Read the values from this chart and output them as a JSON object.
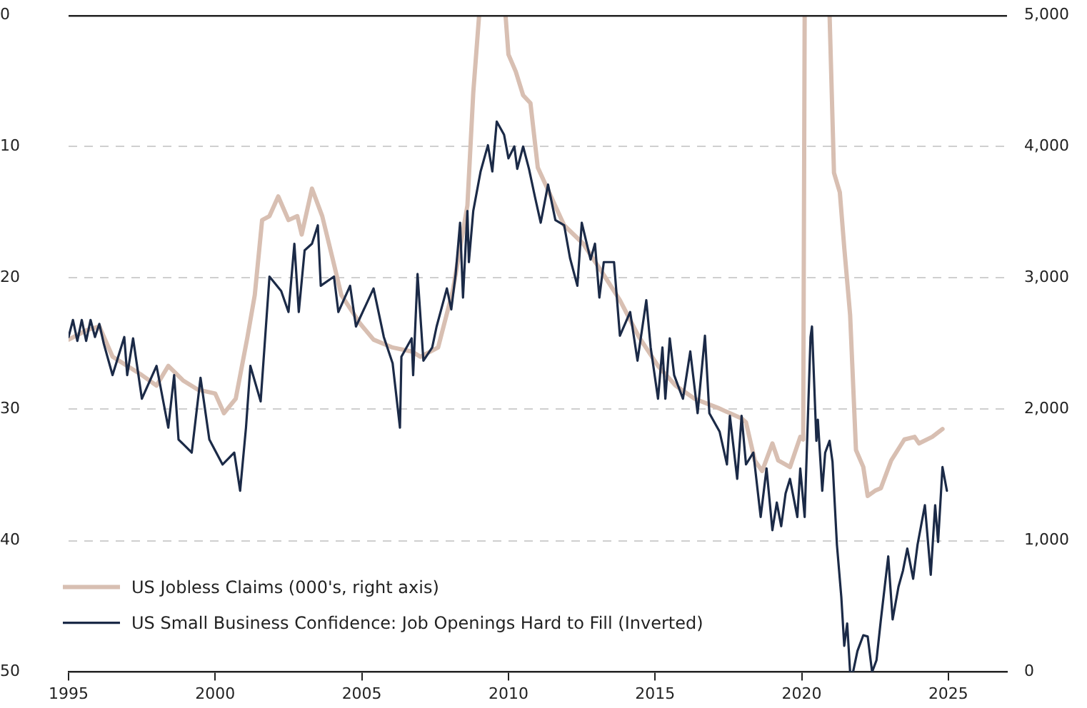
{
  "chart_data": {
    "type": "line",
    "xlim": [
      1995,
      2027
    ],
    "xticks": [
      1995,
      2000,
      2005,
      2010,
      2015,
      2020,
      2025
    ],
    "ylim": [
      50,
      0
    ],
    "yticks": [
      0,
      10,
      20,
      30,
      40,
      50
    ],
    "y2lim": [
      0,
      5000
    ],
    "y2ticks": [
      0,
      {
        "value": 1000,
        "label": "1,000"
      },
      {
        "value": 2000,
        "label": "2,000"
      },
      {
        "value": 3000,
        "label": "3,000"
      },
      {
        "value": 4000,
        "label": "4,000"
      },
      {
        "value": 5000,
        "label": "5,000"
      }
    ],
    "grid": "y",
    "legend": "bottom left",
    "marker": "none",
    "line_style": "solid",
    "series": [
      {
        "name": "US Jobless Claims (000's, right axis)",
        "color": "#d8bfb2",
        "axis": "y2",
        "x": [
          1995.0,
          1995.6,
          1996.05,
          1996.5,
          1997.5,
          1998.0,
          1998.4,
          1998.9,
          1999.4,
          2000.0,
          2000.3,
          2000.7,
          2001.1,
          2001.35,
          2001.6,
          2001.85,
          2002.15,
          2002.5,
          2002.8,
          2002.95,
          2003.3,
          2003.65,
          2004.0,
          2004.3,
          2004.95,
          2005.4,
          2006.05,
          2006.7,
          2007.0,
          2007.6,
          2008.1,
          2008.6,
          2008.8,
          2009.0,
          2009.5,
          2009.9,
          2010.0,
          2010.25,
          2010.5,
          2010.75,
          2011.0,
          2011.45,
          2011.9,
          2012.55,
          2013.2,
          2013.8,
          2014.45,
          2015.1,
          2015.7,
          2016.35,
          2017.15,
          2017.95,
          2018.1,
          2018.4,
          2018.65,
          2019.0,
          2019.2,
          2019.6,
          2019.95,
          2020.05,
          2020.1,
          2020.5,
          2020.95,
          2021.1,
          2021.3,
          2021.45,
          2021.65,
          2021.85,
          2022.1,
          2022.25,
          2022.5,
          2022.7,
          2023.05,
          2023.5,
          2023.85,
          2024.0,
          2024.45,
          2024.8
        ],
        "values": [
          2530,
          2600,
          2630,
          2400,
          2260,
          2180,
          2330,
          2220,
          2150,
          2120,
          1970,
          2080,
          2550,
          2870,
          3440,
          3470,
          3620,
          3440,
          3470,
          3330,
          3680,
          3470,
          3150,
          2870,
          2650,
          2530,
          2470,
          2440,
          2400,
          2470,
          2900,
          3550,
          4410,
          5000,
          null,
          5000,
          4700,
          4570,
          4390,
          4330,
          3840,
          3620,
          3400,
          3260,
          3040,
          2830,
          2550,
          2330,
          2180,
          2080,
          2010,
          1930,
          1900,
          1610,
          1530,
          1740,
          1610,
          1560,
          1790,
          1770,
          5000,
          null,
          5000,
          3800,
          3650,
          3230,
          2720,
          1690,
          1560,
          1340,
          1380,
          1400,
          1610,
          1770,
          1790,
          1740,
          1790,
          1850
        ]
      },
      {
        "name": "US Small Business Confidence: Job Openings Hard to Fill (Inverted)",
        "color": "#1b2a47",
        "x": [
          1995.0,
          1995.15,
          1995.3,
          1995.45,
          1995.6,
          1995.75,
          1995.9,
          1996.05,
          1996.2,
          1996.5,
          1996.9,
          1997.0,
          1997.2,
          1997.5,
          1998.0,
          1998.4,
          1998.6,
          1998.75,
          1999.2,
          1999.5,
          1999.8,
          2000.25,
          2000.65,
          2000.85,
          2001.05,
          2001.2,
          2001.55,
          2001.85,
          2002.25,
          2002.5,
          2002.7,
          2002.85,
          2003.05,
          2003.3,
          2003.5,
          2003.6,
          2004.05,
          2004.2,
          2004.6,
          2004.8,
          2005.4,
          2005.75,
          2006.05,
          2006.3,
          2006.35,
          2006.7,
          2006.75,
          2006.9,
          2007.1,
          2007.4,
          2007.55,
          2007.9,
          2008.05,
          2008.2,
          2008.35,
          2008.45,
          2008.6,
          2008.65,
          2008.8,
          2009.05,
          2009.3,
          2009.45,
          2009.6,
          2009.85,
          2010.0,
          2010.2,
          2010.3,
          2010.5,
          2010.7,
          2010.9,
          2011.1,
          2011.35,
          2011.6,
          2011.9,
          2012.1,
          2012.35,
          2012.5,
          2012.8,
          2012.95,
          2013.1,
          2013.25,
          2013.6,
          2013.8,
          2014.15,
          2014.4,
          2014.7,
          2014.85,
          2015.1,
          2015.25,
          2015.35,
          2015.5,
          2015.65,
          2015.95,
          2016.2,
          2016.45,
          2016.7,
          2016.85,
          2017.2,
          2017.45,
          2017.55,
          2017.8,
          2017.95,
          2018.1,
          2018.35,
          2018.6,
          2018.8,
          2019.0,
          2019.15,
          2019.3,
          2019.45,
          2019.6,
          2019.85,
          2019.95,
          2020.1,
          2020.3,
          2020.35,
          2020.5,
          2020.55,
          2020.7,
          2020.8,
          2020.95,
          2021.05,
          2021.2,
          2021.35,
          2021.45,
          2021.55,
          2021.65,
          2021.75,
          2021.9,
          2022.1,
          2022.25,
          2022.4,
          2022.55,
          2022.7,
          2022.95,
          2023.1,
          2023.3,
          2023.45,
          2023.6,
          2023.8,
          2023.95,
          2024.2,
          2024.4,
          2024.55,
          2024.65,
          2024.8,
          2024.95
        ],
        "values": [
          24.5,
          23.2,
          24.8,
          23.2,
          24.8,
          23.2,
          24.5,
          23.5,
          25.0,
          27.4,
          24.5,
          27.4,
          24.6,
          29.2,
          26.7,
          31.4,
          27.4,
          32.3,
          33.3,
          27.6,
          32.3,
          34.2,
          33.3,
          36.2,
          31.4,
          26.7,
          29.4,
          19.9,
          21.0,
          22.6,
          17.4,
          22.6,
          17.9,
          17.4,
          16.0,
          20.6,
          19.9,
          22.6,
          20.6,
          23.7,
          20.8,
          24.5,
          26.5,
          31.4,
          26.0,
          24.6,
          27.4,
          19.7,
          26.3,
          25.3,
          23.7,
          20.8,
          22.4,
          19.7,
          15.8,
          21.5,
          14.9,
          18.8,
          14.9,
          11.9,
          9.9,
          11.9,
          8.1,
          9.1,
          10.9,
          10.0,
          11.7,
          10.0,
          11.7,
          13.8,
          15.8,
          12.9,
          15.6,
          16.0,
          18.5,
          20.6,
          15.8,
          18.6,
          17.4,
          21.5,
          18.8,
          18.8,
          24.4,
          22.6,
          26.3,
          21.7,
          25.3,
          29.2,
          25.3,
          29.2,
          24.6,
          27.4,
          29.2,
          25.6,
          30.3,
          24.4,
          30.3,
          31.7,
          34.2,
          30.5,
          35.3,
          30.5,
          34.2,
          33.3,
          38.2,
          34.5,
          39.2,
          37.1,
          38.9,
          36.4,
          35.3,
          38.2,
          34.5,
          38.2,
          24.5,
          23.7,
          32.4,
          30.8,
          36.2,
          33.3,
          32.4,
          34.0,
          40.3,
          44.3,
          48.0,
          46.3,
          50,
          50,
          48.4,
          47.2,
          47.3,
          50,
          49.1,
          46.0,
          41.2,
          46.0,
          43.5,
          42.3,
          40.6,
          42.9,
          40.3,
          37.3,
          42.6,
          37.3,
          40.1,
          34.4,
          36.2
        ]
      }
    ]
  }
}
